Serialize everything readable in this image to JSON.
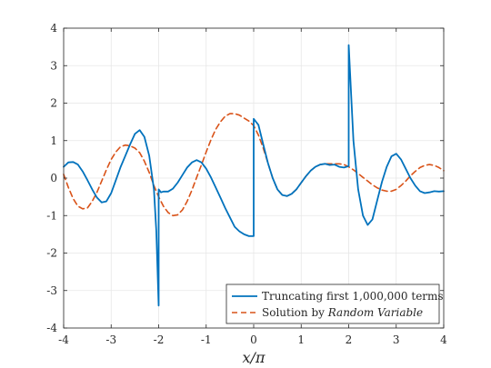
{
  "chart_data": {
    "type": "line",
    "title": "",
    "xlabel": "x/π",
    "ylabel": "",
    "xlim": [
      -4,
      4
    ],
    "ylim": [
      -4,
      4
    ],
    "xticks": [
      "-4",
      "-3",
      "-2",
      "-1",
      "0",
      "1",
      "2",
      "3",
      "4"
    ],
    "yticks": [
      "-4",
      "-3",
      "-2",
      "-1",
      "0",
      "1",
      "2",
      "3",
      "4"
    ],
    "grid": true,
    "legend_position": "bottom-right",
    "legend": {
      "truncated_label": "Truncating first 1,000,000 terms",
      "solution_prefix": "Solution by",
      "solution_emphasis": "Random Variable"
    },
    "series": [
      {
        "name": "Truncating first 1,000,000 terms",
        "color": "#0072BD",
        "dash": "solid",
        "x": [
          -4.0,
          -3.9,
          -3.8,
          -3.7,
          -3.6,
          -3.5,
          -3.4,
          -3.3,
          -3.2,
          -3.1,
          -3.0,
          -2.9,
          -2.8,
          -2.7,
          -2.6,
          -2.5,
          -2.4,
          -2.3,
          -2.2,
          -2.1,
          -2.05,
          -2.0,
          -2.0,
          -1.95,
          -1.9,
          -1.8,
          -1.7,
          -1.6,
          -1.5,
          -1.4,
          -1.3,
          -1.2,
          -1.1,
          -1.0,
          -0.9,
          -0.8,
          -0.7,
          -0.6,
          -0.5,
          -0.4,
          -0.3,
          -0.2,
          -0.1,
          0.0,
          0.0,
          0.1,
          0.2,
          0.3,
          0.4,
          0.5,
          0.6,
          0.7,
          0.8,
          0.9,
          1.0,
          1.1,
          1.2,
          1.3,
          1.4,
          1.5,
          1.6,
          1.7,
          1.8,
          1.9,
          2.0,
          2.0,
          2.1,
          2.2,
          2.3,
          2.4,
          2.5,
          2.6,
          2.7,
          2.8,
          2.9,
          3.0,
          3.1,
          3.2,
          3.3,
          3.4,
          3.5,
          3.6,
          3.7,
          3.8,
          3.9,
          4.0
        ],
        "y": [
          0.3,
          0.42,
          0.43,
          0.36,
          0.18,
          -0.05,
          -0.3,
          -0.52,
          -0.65,
          -0.62,
          -0.4,
          -0.05,
          0.3,
          0.6,
          0.9,
          1.18,
          1.28,
          1.1,
          0.6,
          -0.3,
          -1.4,
          -3.4,
          -0.3,
          -0.38,
          -0.36,
          -0.36,
          -0.28,
          -0.12,
          0.08,
          0.28,
          0.42,
          0.48,
          0.42,
          0.25,
          0.02,
          -0.25,
          -0.52,
          -0.8,
          -1.05,
          -1.3,
          -1.42,
          -1.5,
          -1.55,
          -1.55,
          1.58,
          1.42,
          0.9,
          0.4,
          0.0,
          -0.3,
          -0.45,
          -0.48,
          -0.42,
          -0.3,
          -0.12,
          0.05,
          0.2,
          0.3,
          0.36,
          0.38,
          0.35,
          0.36,
          0.3,
          0.28,
          0.32,
          3.55,
          1.0,
          -0.3,
          -1.0,
          -1.25,
          -1.1,
          -0.6,
          -0.1,
          0.3,
          0.58,
          0.65,
          0.5,
          0.25,
          0.0,
          -0.2,
          -0.35,
          -0.4,
          -0.38,
          -0.35,
          -0.36,
          -0.35
        ]
      },
      {
        "name": "Solution by Random Variable",
        "color": "#D95319",
        "dash": "dashed",
        "x": [
          -4.0,
          -3.9,
          -3.8,
          -3.7,
          -3.6,
          -3.5,
          -3.4,
          -3.3,
          -3.2,
          -3.1,
          -3.0,
          -2.9,
          -2.8,
          -2.7,
          -2.6,
          -2.5,
          -2.4,
          -2.3,
          -2.2,
          -2.1,
          -2.0,
          -1.9,
          -1.8,
          -1.7,
          -1.6,
          -1.5,
          -1.4,
          -1.3,
          -1.2,
          -1.1,
          -1.0,
          -0.9,
          -0.8,
          -0.7,
          -0.6,
          -0.5,
          -0.4,
          -0.3,
          -0.2,
          -0.1,
          0.0,
          0.1,
          0.2,
          0.3,
          0.4,
          0.5,
          0.6,
          0.7,
          0.8,
          0.9,
          1.0,
          1.1,
          1.2,
          1.3,
          1.4,
          1.5,
          1.6,
          1.7,
          1.8,
          1.9,
          2.0,
          2.1,
          2.2,
          2.3,
          2.4,
          2.5,
          2.6,
          2.7,
          2.8,
          2.9,
          3.0,
          3.1,
          3.2,
          3.3,
          3.4,
          3.5,
          3.6,
          3.7,
          3.8,
          3.9,
          4.0
        ],
        "y": [
          0.1,
          -0.25,
          -0.55,
          -0.75,
          -0.82,
          -0.8,
          -0.62,
          -0.38,
          -0.08,
          0.22,
          0.5,
          0.7,
          0.84,
          0.88,
          0.86,
          0.8,
          0.68,
          0.45,
          0.15,
          -0.2,
          -0.5,
          -0.75,
          -0.92,
          -1.0,
          -0.98,
          -0.85,
          -0.62,
          -0.32,
          0.02,
          0.35,
          0.7,
          1.02,
          1.3,
          1.5,
          1.65,
          1.72,
          1.72,
          1.68,
          1.6,
          1.52,
          1.4,
          1.15,
          0.8,
          0.4,
          0.0,
          -0.3,
          -0.45,
          -0.48,
          -0.42,
          -0.3,
          -0.12,
          0.05,
          0.2,
          0.3,
          0.36,
          0.38,
          0.38,
          0.38,
          0.38,
          0.36,
          0.3,
          0.22,
          0.12,
          0.02,
          -0.08,
          -0.18,
          -0.26,
          -0.32,
          -0.35,
          -0.35,
          -0.3,
          -0.2,
          -0.08,
          0.06,
          0.18,
          0.28,
          0.34,
          0.36,
          0.34,
          0.28,
          0.2
        ]
      }
    ]
  }
}
